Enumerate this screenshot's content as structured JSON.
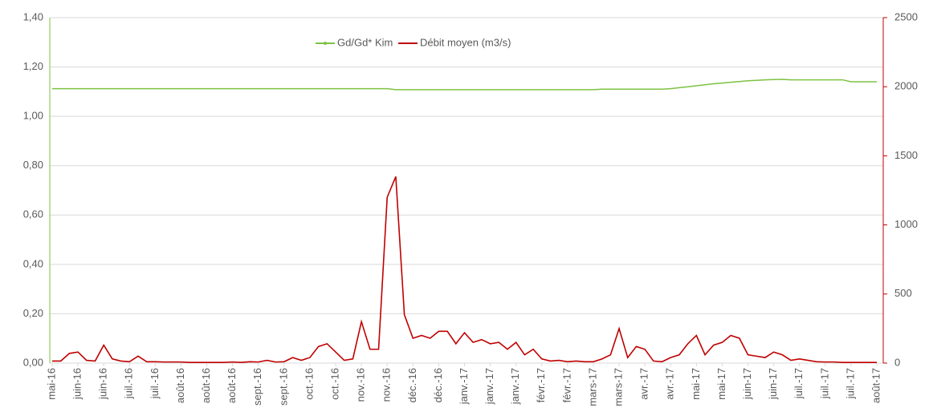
{
  "chart_data": {
    "type": "line",
    "categories": [
      "mai-16",
      null,
      null,
      "juin-16",
      null,
      null,
      "juin-16",
      null,
      null,
      "juil.-16",
      null,
      null,
      "juil.-16",
      null,
      null,
      "août-16",
      null,
      null,
      "août-16",
      null,
      null,
      "août-16",
      null,
      null,
      "sept.-16",
      null,
      null,
      "sept.-16",
      null,
      null,
      "oct.-16",
      null,
      null,
      "oct.-16",
      null,
      null,
      "nov.-16",
      null,
      null,
      "nov.-16",
      null,
      null,
      "déc.-16",
      null,
      null,
      "déc.-16",
      null,
      null,
      "janv.-17",
      null,
      null,
      "janv.-17",
      null,
      null,
      "janv.-17",
      null,
      null,
      "févr.-17",
      null,
      null,
      "févr.-17",
      null,
      null,
      "mars-17",
      null,
      null,
      "mars-17",
      null,
      null,
      "avr.-17",
      null,
      null,
      "avr.-17",
      null,
      null,
      "mai-17",
      null,
      null,
      "mai-17",
      null,
      null,
      "juin-17",
      null,
      null,
      "juin-17",
      null,
      null,
      "juil.-17",
      null,
      null,
      "juil.-17",
      null,
      null,
      "juil.-17",
      null,
      null,
      "août-17"
    ],
    "series": [
      {
        "name": "Gd/Gd* Kim",
        "color": "#7dc242",
        "axis": "y",
        "values": [
          1.112,
          1.112,
          1.112,
          1.112,
          1.112,
          1.112,
          1.112,
          1.112,
          1.112,
          1.112,
          1.112,
          1.112,
          1.112,
          1.112,
          1.112,
          1.112,
          1.112,
          1.112,
          1.112,
          1.112,
          1.112,
          1.112,
          1.112,
          1.112,
          1.112,
          1.112,
          1.112,
          1.112,
          1.112,
          1.112,
          1.112,
          1.112,
          1.112,
          1.112,
          1.112,
          1.112,
          1.112,
          1.112,
          1.112,
          1.112,
          1.108,
          1.108,
          1.108,
          1.108,
          1.108,
          1.108,
          1.108,
          1.108,
          1.108,
          1.108,
          1.108,
          1.108,
          1.108,
          1.108,
          1.108,
          1.108,
          1.108,
          1.108,
          1.108,
          1.108,
          1.108,
          1.108,
          1.108,
          1.108,
          1.11,
          1.11,
          1.11,
          1.11,
          1.11,
          1.11,
          1.11,
          1.11,
          1.112,
          1.116,
          1.12,
          1.124,
          1.128,
          1.132,
          1.135,
          1.138,
          1.141,
          1.144,
          1.146,
          1.148,
          1.149,
          1.15,
          1.148,
          1.148,
          1.148,
          1.148,
          1.148,
          1.148,
          1.148,
          1.14,
          1.14,
          1.14,
          1.14
        ]
      },
      {
        "name": "Débit moyen (m3/s)",
        "color": "#c00000",
        "axis": "y2",
        "values": [
          15,
          15,
          70,
          80,
          20,
          15,
          130,
          30,
          15,
          10,
          50,
          10,
          10,
          8,
          8,
          8,
          5,
          5,
          5,
          5,
          5,
          8,
          5,
          10,
          8,
          20,
          8,
          10,
          40,
          20,
          40,
          120,
          140,
          80,
          20,
          30,
          300,
          100,
          100,
          1200,
          1350,
          350,
          180,
          200,
          180,
          230,
          230,
          140,
          220,
          150,
          170,
          140,
          150,
          100,
          150,
          60,
          100,
          30,
          15,
          20,
          10,
          15,
          10,
          10,
          30,
          60,
          250,
          40,
          120,
          100,
          15,
          10,
          40,
          60,
          140,
          200,
          60,
          130,
          150,
          200,
          180,
          60,
          50,
          40,
          80,
          60,
          20,
          30,
          20,
          10,
          8,
          8,
          5,
          5,
          5,
          5,
          5
        ]
      }
    ],
    "ylim": [
      0,
      1.4
    ],
    "yticks": [
      {
        "value": 0,
        "label": "0,00"
      },
      {
        "value": 0.2,
        "label": "0,20"
      },
      {
        "value": 0.4,
        "label": "0,40"
      },
      {
        "value": 0.6,
        "label": "0,60"
      },
      {
        "value": 0.8,
        "label": "0,80"
      },
      {
        "value": 1.0,
        "label": "1,00"
      },
      {
        "value": 1.2,
        "label": "1,20"
      },
      {
        "value": 1.4,
        "label": "1,40"
      }
    ],
    "y2lim": [
      0,
      2500
    ],
    "y2ticks": [
      0,
      500,
      1000,
      1500,
      2000,
      2500
    ],
    "grid": true,
    "legend": "top"
  }
}
